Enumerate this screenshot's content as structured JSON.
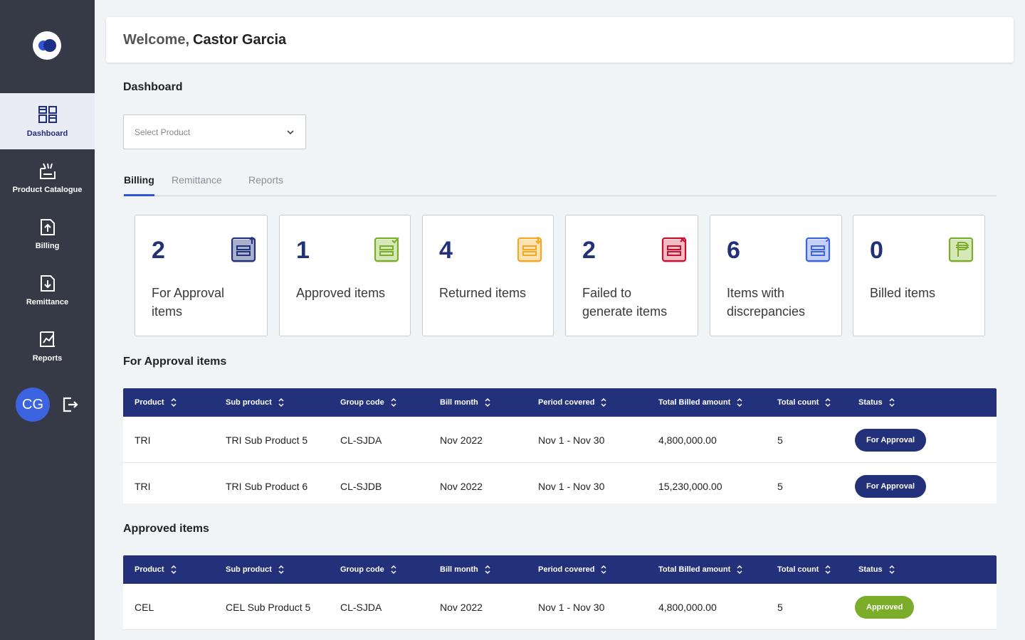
{
  "sidebar": {
    "items": [
      {
        "label": "Dashboard",
        "icon": "dashboard-icon"
      },
      {
        "label": "Product Catalogue",
        "icon": "catalogue-icon"
      },
      {
        "label": "Billing",
        "icon": "billing-icon"
      },
      {
        "label": "Remittance",
        "icon": "remittance-icon"
      },
      {
        "label": "Reports",
        "icon": "reports-icon"
      }
    ],
    "active_index": 0,
    "user_initials": "CG"
  },
  "header": {
    "welcome": "Welcome,",
    "user_name": "Castor Garcia"
  },
  "page_title": "Dashboard",
  "product_select": {
    "placeholder": "Select Product"
  },
  "tabs": [
    "Billing",
    "Remittance",
    "Reports"
  ],
  "active_tab": "Billing",
  "cards": [
    {
      "value": "2",
      "label": "For Approval items",
      "icon": "for-approval-icon",
      "color": "#23307a"
    },
    {
      "value": "1",
      "label": "Approved items",
      "icon": "approved-icon",
      "color": "#7bad2a"
    },
    {
      "value": "4",
      "label": "Returned items",
      "icon": "returned-icon",
      "color": "#f5a623"
    },
    {
      "value": "2",
      "label": "Failed to generate items",
      "icon": "failed-icon",
      "color": "#c8102e"
    },
    {
      "value": "6",
      "label": "Items with discrepancies",
      "icon": "discrepancy-icon",
      "color": "#3d64e0"
    },
    {
      "value": "0",
      "label": "Billed items",
      "icon": "billed-icon",
      "color": "#7bad2a"
    }
  ],
  "columns": [
    "Product",
    "Sub product",
    "Group code",
    "Bill month",
    "Period covered",
    "Total Billed amount",
    "Total count",
    "Status"
  ],
  "for_approval": {
    "title": "For Approval items",
    "rows": [
      [
        "TRI",
        "TRI Sub Product 5",
        "CL-SJDA",
        "Nov 2022",
        "Nov 1 - Nov 30",
        "4,800,000.00",
        "5",
        "For Approval"
      ],
      [
        "TRI",
        "TRI Sub Product 6",
        "CL-SJDB",
        "Nov 2022",
        "Nov 1 - Nov 30",
        "15,230,000.00",
        "5",
        "For Approval"
      ]
    ]
  },
  "approved": {
    "title": "Approved items",
    "rows": [
      [
        "CEL",
        "CEL Sub Product 5",
        "CL-SJDA",
        "Nov 2022",
        "Nov 1 - Nov 30",
        "4,800,000.00",
        "5",
        "Approved"
      ]
    ]
  },
  "colors": {
    "sidebar": "#363a46",
    "primary": "#23307a",
    "accent": "#2f54d6",
    "approved": "#7bad2a"
  }
}
